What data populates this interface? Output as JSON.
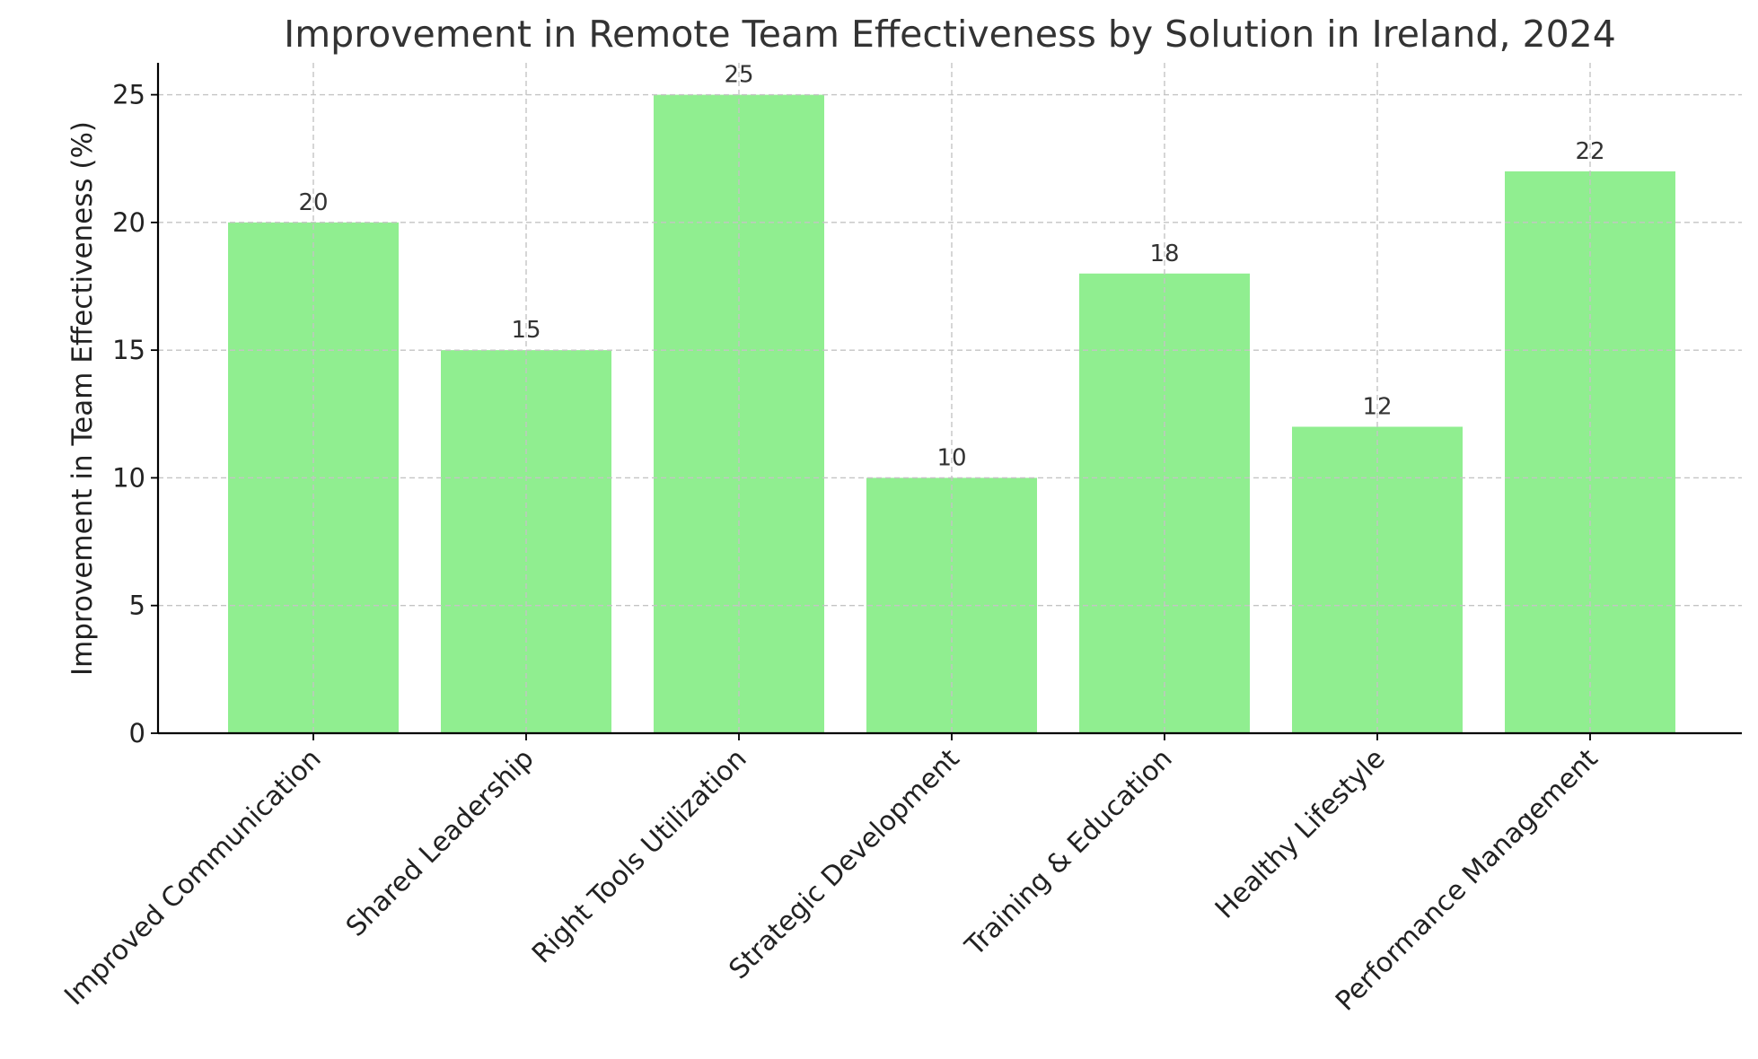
{
  "chart_data": {
    "type": "bar",
    "title": "Improvement in Remote Team Effectiveness by Solution in Ireland, 2024",
    "xlabel": "",
    "ylabel": "Improvement in Team Effectiveness (%)",
    "categories": [
      "Improved Communication",
      "Shared Leadership",
      "Right Tools Utilization",
      "Strategic Development",
      "Training & Education",
      "Healthy Lifestyle",
      "Performance Management"
    ],
    "values": [
      20,
      15,
      25,
      10,
      18,
      12,
      22
    ],
    "data_labels": [
      "20",
      "15",
      "25",
      "10",
      "18",
      "12",
      "22"
    ],
    "ylim": [
      0,
      26.25
    ],
    "yticks": [
      0,
      5,
      10,
      15,
      20,
      25
    ],
    "ytick_labels": [
      "0",
      "5",
      "10",
      "15",
      "20",
      "25"
    ],
    "grid": true,
    "bar_color": "#90ee90"
  }
}
